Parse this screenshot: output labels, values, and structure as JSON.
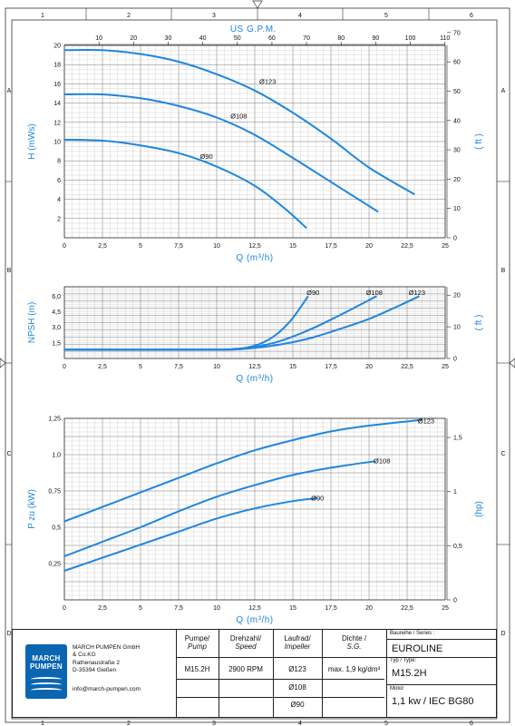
{
  "frame": {
    "col_numbers": [
      "1",
      "2",
      "3",
      "4",
      "5",
      "6"
    ],
    "row_letters": [
      "A",
      "B",
      "C",
      "D"
    ]
  },
  "chart_data": [
    {
      "type": "line",
      "title": "",
      "ylabel": "H (mWs)",
      "xlabel": "Q (m³/h)",
      "top_axis_label": "US G.P.M.",
      "top_ticks": [
        "10",
        "20",
        "30",
        "40",
        "50",
        "60",
        "70",
        "80",
        "90",
        "100",
        "110"
      ],
      "right_axis_label": "( ft )",
      "right_ticks": [
        "0",
        "10",
        "20",
        "30",
        "40",
        "50",
        "60",
        "70"
      ],
      "y_ticks": [
        "2",
        "4",
        "6",
        "8",
        "10",
        "12",
        "14",
        "16",
        "18",
        "20"
      ],
      "x_ticks": [
        "0",
        "2,5",
        "5",
        "7,5",
        "10",
        "12,5",
        "15",
        "17,5",
        "20",
        "22,5",
        "25"
      ],
      "xlim": [
        0,
        25
      ],
      "ylim": [
        0,
        20
      ],
      "series": [
        {
          "name": "Ø123",
          "x": [
            0,
            2.5,
            5,
            7.5,
            10,
            12.5,
            15,
            17.5,
            20,
            23
          ],
          "y": [
            19.5,
            19.5,
            19.1,
            18.3,
            17.0,
            15.3,
            13.0,
            10.3,
            7.3,
            4.5
          ],
          "label_at": [
            12.8,
            16.0
          ]
        },
        {
          "name": "Ø108",
          "x": [
            0,
            2.5,
            5,
            7.5,
            10,
            12.5,
            15,
            17.5,
            20.6
          ],
          "y": [
            14.9,
            14.9,
            14.5,
            13.7,
            12.5,
            10.7,
            8.3,
            5.8,
            2.7
          ],
          "label_at": [
            10.9,
            12.4
          ]
        },
        {
          "name": "Ø90",
          "x": [
            0,
            2.5,
            5,
            7.5,
            10,
            12.5,
            14.5,
            15.9
          ],
          "y": [
            10.2,
            10.1,
            9.6,
            8.8,
            7.4,
            5.4,
            3.0,
            1.0
          ],
          "label_at": [
            8.9,
            8.2
          ]
        }
      ]
    },
    {
      "type": "line",
      "title": "",
      "ylabel": "NPSH (m)",
      "xlabel": "Q (m³/h)",
      "right_axis_label": "( ft )",
      "right_ticks": [
        "0",
        "10",
        "20"
      ],
      "y_ticks": [
        "1,5",
        "3,0",
        "4,5",
        "6,0"
      ],
      "x_ticks": [
        "0",
        "2,5",
        "5",
        "7,5",
        "10",
        "12,5",
        "15",
        "17,5",
        "20",
        "22,5",
        "25"
      ],
      "xlim": [
        0,
        25
      ],
      "ylim": [
        0,
        6.9
      ],
      "series": [
        {
          "name": "Ø90",
          "x": [
            0,
            10,
            11,
            12,
            13,
            14,
            15,
            16
          ],
          "y": [
            0.85,
            0.85,
            0.9,
            1.05,
            1.5,
            2.4,
            3.9,
            6.0
          ],
          "label_at": [
            15.9,
            6.1
          ]
        },
        {
          "name": "Ø108",
          "x": [
            0,
            10,
            12,
            14,
            16,
            18,
            20.5
          ],
          "y": [
            0.85,
            0.85,
            1.0,
            1.6,
            2.7,
            4.1,
            6.0
          ],
          "label_at": [
            19.8,
            6.1
          ]
        },
        {
          "name": "Ø123",
          "x": [
            0,
            10,
            12,
            14,
            16,
            18,
            20,
            22,
            23.3
          ],
          "y": [
            0.85,
            0.85,
            0.95,
            1.3,
            1.9,
            2.8,
            3.8,
            5.1,
            6.0
          ],
          "label_at": [
            22.6,
            6.1
          ]
        }
      ]
    },
    {
      "type": "line",
      "title": "",
      "ylabel": "P zu (kW)",
      "xlabel": "Q (m³/h)",
      "right_axis_label": "(hp)",
      "right_ticks": [
        "0",
        "0,5",
        "1",
        "1,5"
      ],
      "y_ticks": [
        "0,25",
        "0,5",
        "0,75",
        "1,0",
        "1,25"
      ],
      "x_ticks": [
        "0",
        "2,5",
        "5",
        "7,5",
        "10",
        "12,5",
        "15",
        "17,5",
        "20",
        "22,5",
        "25"
      ],
      "xlim": [
        0,
        25
      ],
      "ylim": [
        0,
        1.25
      ],
      "series": [
        {
          "name": "Ø123",
          "x": [
            0,
            2.5,
            5,
            7.5,
            10,
            12.5,
            15,
            17.5,
            20,
            23.5
          ],
          "y": [
            0.54,
            0.64,
            0.74,
            0.84,
            0.94,
            1.03,
            1.1,
            1.16,
            1.2,
            1.24
          ],
          "label_at": [
            23.2,
            1.215
          ]
        },
        {
          "name": "Ø108",
          "x": [
            0,
            2.5,
            5,
            7.5,
            10,
            12.5,
            15,
            17.5,
            20.4
          ],
          "y": [
            0.3,
            0.4,
            0.5,
            0.61,
            0.71,
            0.79,
            0.86,
            0.91,
            0.955
          ],
          "label_at": [
            20.3,
            0.94
          ]
        },
        {
          "name": "Ø90",
          "x": [
            0,
            2.5,
            5,
            7.5,
            10,
            12.5,
            15,
            16.6
          ],
          "y": [
            0.2,
            0.29,
            0.38,
            0.47,
            0.56,
            0.63,
            0.68,
            0.7
          ],
          "label_at": [
            16.2,
            0.685
          ]
        }
      ]
    }
  ],
  "title_block": {
    "logo_line1": "MARCH",
    "logo_line2": "PUMPEN",
    "company_name": "MARCH PUMPEN GmbH",
    "company_co": "& Co.KG",
    "street": "Rathenaustraße 2",
    "city": "D-35394 Gießen",
    "email": "info@march-pumpen.com",
    "pump_header_de": "Pumpe/",
    "pump_header_en": "Pump",
    "speed_header_de": "Drehzahl/",
    "speed_header_en": "Speed",
    "impeller_header_de": "Laufrad/",
    "impeller_header_en": "Impeller",
    "density_header_de": "Dichte /",
    "density_header_en": "S.G.",
    "pump_value": "M15.2H",
    "speed_value": "2900 RPM",
    "impellers": [
      "Ø123",
      "Ø108",
      "Ø90"
    ],
    "density_value": "max. 1,9 kg/dm³",
    "series_label": "Baureihe / Series :",
    "series_value": "EUROLINE",
    "type_label": "Typ / Type:",
    "type_value": "M15.2H",
    "motor_label": "Motor",
    "motor_value": "1,1 kw / IEC BG80"
  }
}
